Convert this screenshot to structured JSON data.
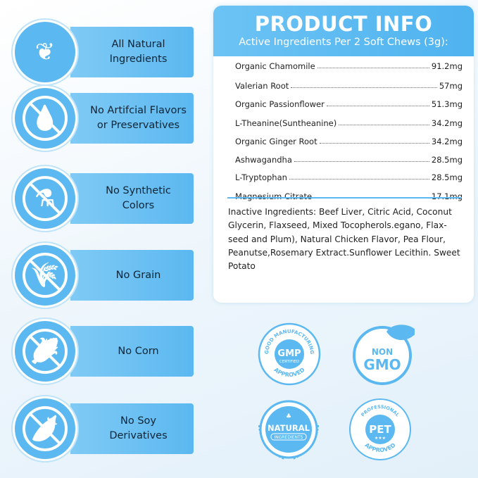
{
  "features": [
    {
      "icon": "leaves-icon",
      "lines": [
        "All Natural",
        "Ingredients"
      ]
    },
    {
      "icon": "no-dropper-icon",
      "lines": [
        "No Artifcial Flavors",
        "or Preservatives"
      ]
    },
    {
      "icon": "no-flask-icon",
      "lines": [
        "No Synthetic",
        "Colors"
      ]
    },
    {
      "icon": "no-grain-icon",
      "lines": [
        "No Grain",
        ""
      ]
    },
    {
      "icon": "no-corn-icon",
      "lines": [
        "No Corn",
        ""
      ]
    },
    {
      "icon": "no-soy-icon",
      "lines": [
        "No Soy",
        "Derivatives"
      ]
    }
  ],
  "product_info": {
    "title": "PRODUCT INFO",
    "subtitle": "Active Ingredients Per 2 Soft Chews (3g):",
    "ingredients": [
      {
        "name": "Organic Chamomile",
        "amount": "91.2mg"
      },
      {
        "name": "Valerian Root",
        "amount": "57mg"
      },
      {
        "name": "Organic Passionflower",
        "amount": "51.3mg"
      },
      {
        "name": "L-Theanine(Suntheanine)",
        "amount": "34.2mg"
      },
      {
        "name": "Organic Ginger Root",
        "amount": "34.2mg"
      },
      {
        "name": "Ashwagandha",
        "amount": "28.5mg"
      },
      {
        "name": "L-Tryptophan",
        "amount": "28.5mg"
      },
      {
        "name": "Magnesium Citrate",
        "amount": "17.1mg"
      }
    ],
    "inactive": "Inactive Ingredients: Beef Liver, Citric Acid, Coconut Glycerin, Flaxseed, Mixed Tocopherols.egano, Flax-seed and Plum), Natural Chicken Flavor, Pea Flour, Peanutse,Rosemary Extract.Sunflower Lecithin. Sweet Potato"
  },
  "badges": {
    "gmp": {
      "top": "GOOD MANUFACTURING",
      "main": "GMP",
      "sub": "CERTIFIED",
      "bottom": "APPROVED"
    },
    "nongmo": {
      "top": "NON",
      "main": "GMO"
    },
    "natural": {
      "main": "NATURAL",
      "sub": "INGREDIENTS"
    },
    "pet": {
      "top": "PROFESSIONAL",
      "main": "PET",
      "bottom": "APPROVED"
    }
  },
  "colors": {
    "accent": "#5bb8f0",
    "text": "#0d2436"
  }
}
